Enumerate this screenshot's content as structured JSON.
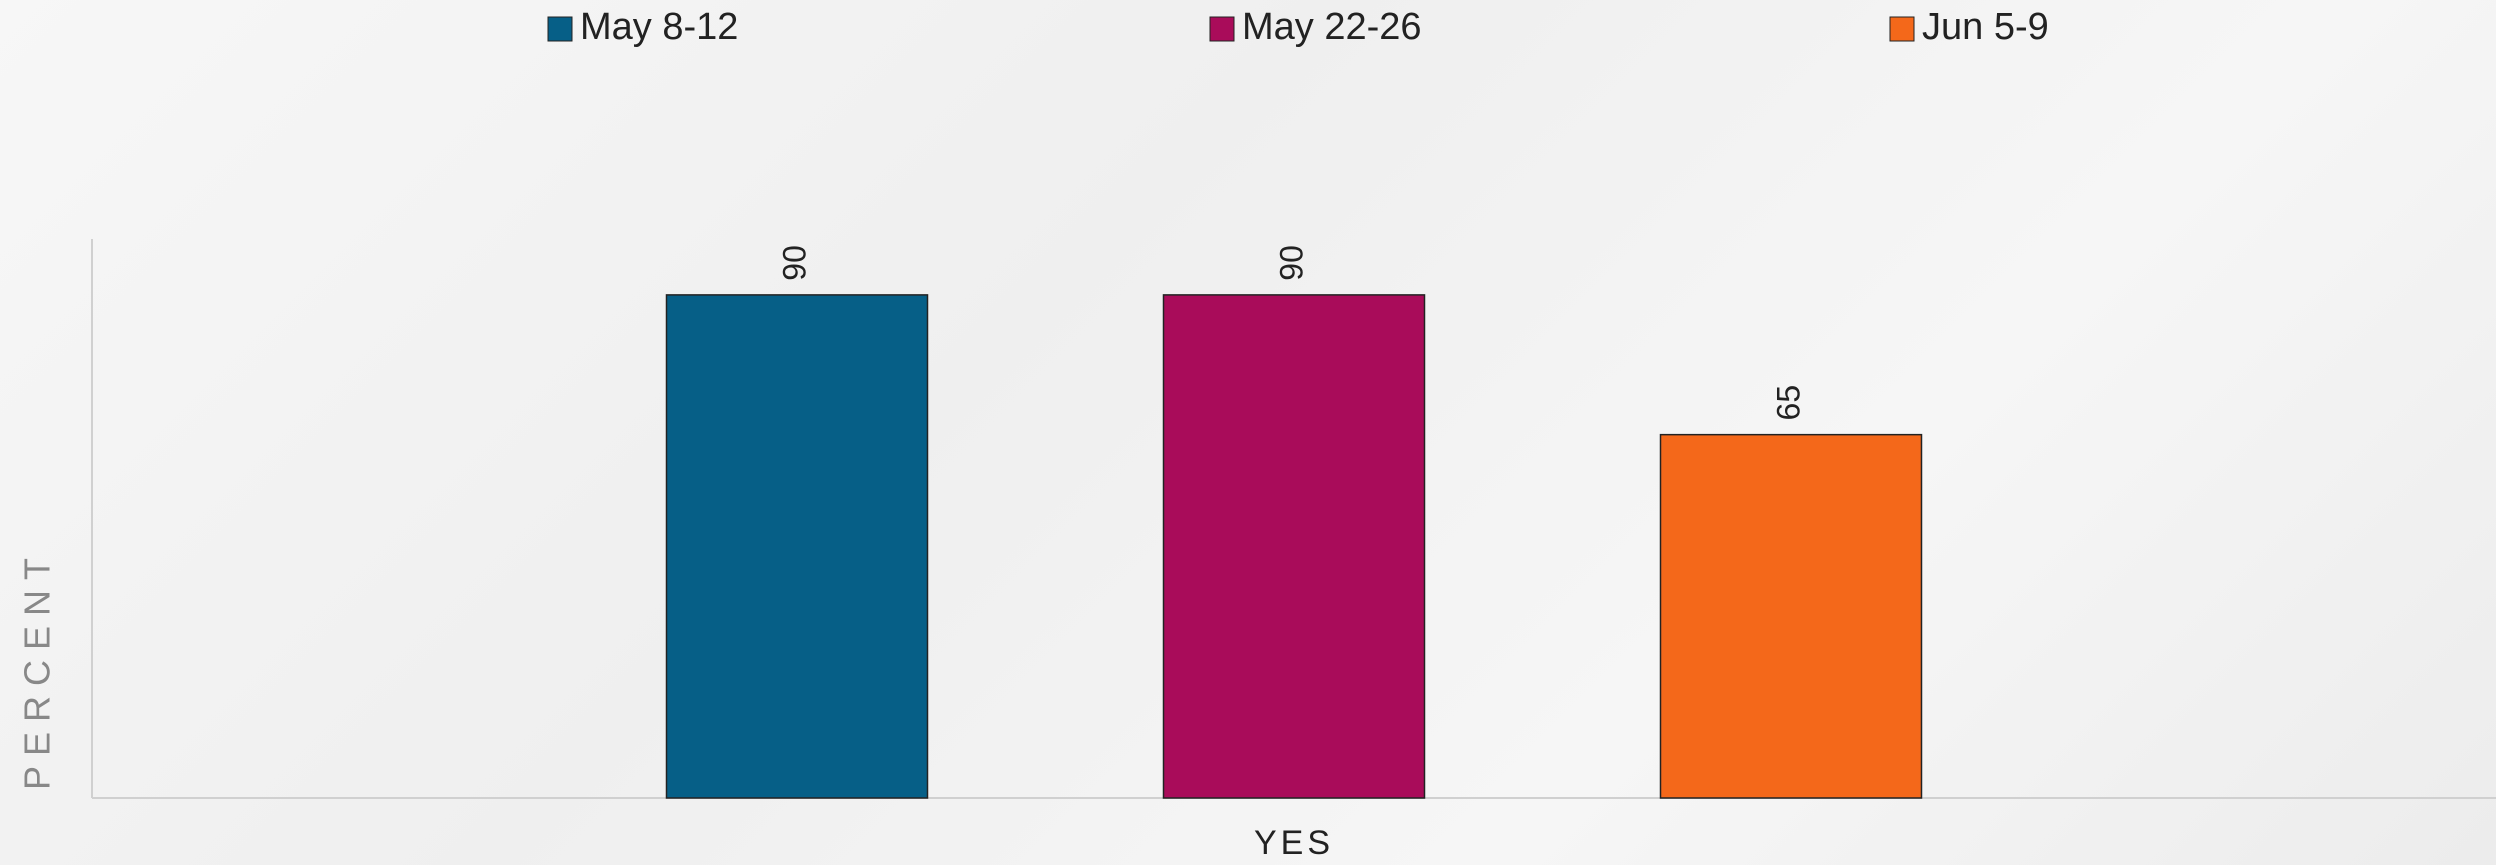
{
  "chart_data": {
    "type": "bar",
    "categories": [
      "YES"
    ],
    "y_label": "PERCENT",
    "series": [
      {
        "name": "May 8-12",
        "color": "#065f87",
        "values": [
          90
        ]
      },
      {
        "name": "May 22-26",
        "color": "#a90c5a",
        "values": [
          90
        ]
      },
      {
        "name": "Jun 5-9",
        "color": "#f4681a",
        "values": [
          65
        ]
      }
    ],
    "ylim": [
      0,
      100
    ],
    "legend": "top"
  }
}
